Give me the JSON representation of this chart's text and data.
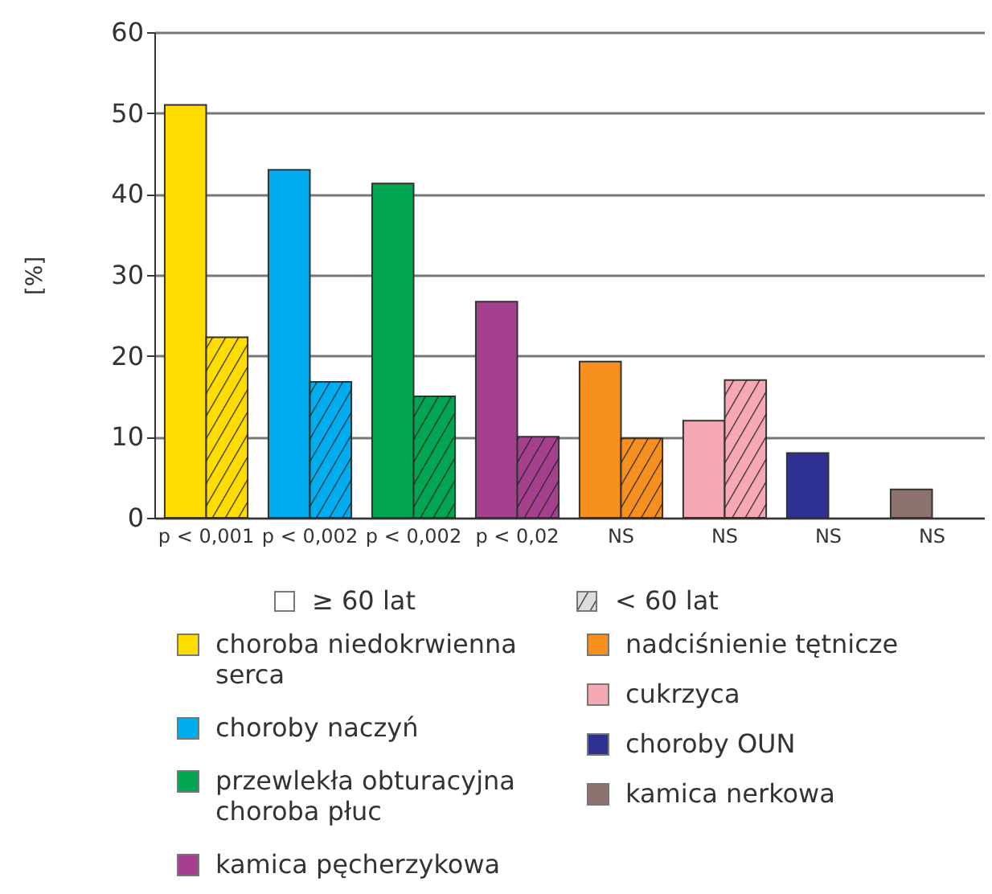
{
  "chart_data": {
    "type": "bar",
    "ylabel": "[%]",
    "categories": [
      "p < 0,001",
      "p < 0,002",
      "p < 0,002",
      "p < 0,02",
      "NS",
      "NS",
      "NS",
      "NS"
    ],
    "series": [
      {
        "name": "≥ 60 lat",
        "colors": [
          "#ffdd00",
          "#00aeef",
          "#00a651",
          "#a4408f",
          "#f7901e",
          "#f6a8b4",
          "#2e3192",
          "#8c736d"
        ],
        "values": [
          51,
          43,
          41.3,
          26.7,
          19.3,
          12,
          8,
          3.5
        ]
      },
      {
        "name": "< 60 lat",
        "colors": [
          "#ffdd00",
          "#00aeef",
          "#00a651",
          "#a4408f",
          "#f7901e",
          "#f6a8b4",
          "#2e3192",
          "#8c736d"
        ],
        "values": [
          22.3,
          16.8,
          15,
          10,
          9.8,
          17,
          null,
          null
        ]
      }
    ],
    "annotations": [
      "choroba niedokrwienna serca",
      "choroby naczyń",
      "przewlekła obturacyjna choroba płuc",
      "kamica pęcherzykowa",
      "nadciśnienie tętnicze",
      "cukrzyca",
      "choroby OUN",
      "kamica nerkowa"
    ],
    "ylim": [
      0,
      60
    ],
    "yticks": [
      0,
      10,
      20,
      30,
      40,
      50,
      60
    ],
    "grid": "y",
    "legend": "bottom"
  }
}
